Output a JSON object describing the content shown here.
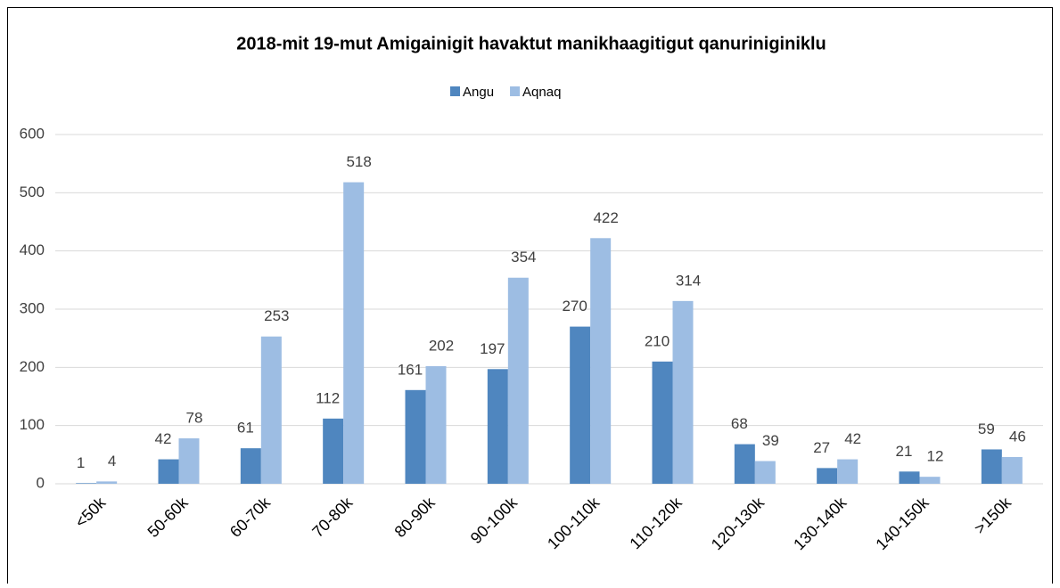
{
  "chart_data": {
    "type": "bar",
    "title": "2018-mit 19-mut Amigainigit havaktut manikhaagitigut qanuriniginiklu",
    "categories": [
      "<50k",
      "50-60k",
      "60-70k",
      "70-80k",
      "80-90k",
      "90-100k",
      "100-110k",
      "110-120k",
      "120-130k",
      "130-140k",
      "140-150k",
      ">150k"
    ],
    "series": [
      {
        "name": "Angu",
        "color": "#4f86bf",
        "values": [
          1,
          42,
          61,
          112,
          161,
          197,
          270,
          210,
          68,
          27,
          21,
          59
        ]
      },
      {
        "name": "Aqnaq",
        "color": "#9dbde3",
        "values": [
          4,
          78,
          253,
          518,
          202,
          354,
          422,
          314,
          39,
          42,
          12,
          46
        ]
      }
    ],
    "ylim": [
      0,
      600
    ],
    "yticks": [
      0,
      100,
      200,
      300,
      400,
      500,
      600
    ],
    "grid": true,
    "legend": "top"
  }
}
